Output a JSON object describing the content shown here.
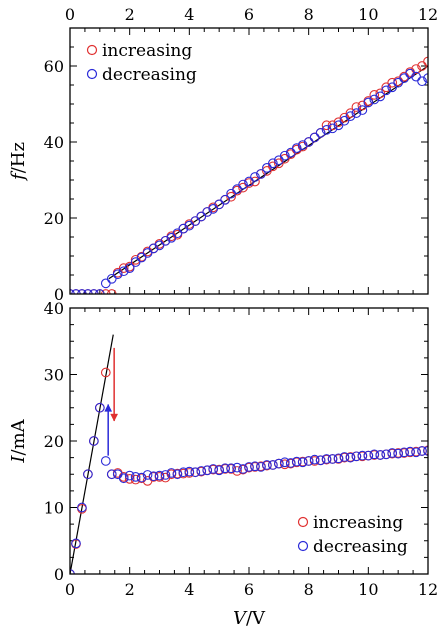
{
  "chart_data": [
    {
      "type": "scatter",
      "title": "",
      "xlabel": "",
      "ylabel": "f/Hz",
      "xlim": [
        0,
        12
      ],
      "ylim": [
        0,
        70
      ],
      "xticks": [
        0,
        2,
        4,
        6,
        8,
        10,
        12
      ],
      "yticks": [
        0,
        20,
        40,
        60
      ],
      "x_ticks_on": "top",
      "legend_position": "top-left",
      "colors": {
        "increasing": "#e03030",
        "decreasing": "#2a2ad8",
        "fit": "#000000"
      },
      "series": [
        {
          "name": "increasing",
          "color": "#e03030",
          "x": [
            0,
            0.2,
            0.4,
            0.6,
            0.8,
            1.0,
            1.2,
            1.4,
            1.6,
            1.8,
            2.0,
            2.2,
            2.4,
            2.6,
            2.8,
            3.0,
            3.2,
            3.4,
            3.6,
            3.8,
            4.0,
            4.2,
            4.4,
            4.6,
            4.8,
            5.0,
            5.2,
            5.4,
            5.6,
            5.8,
            6.0,
            6.2,
            6.4,
            6.6,
            6.8,
            7.0,
            7.2,
            7.4,
            7.6,
            7.8,
            8.0,
            8.2,
            8.4,
            8.6,
            8.8,
            9.0,
            9.2,
            9.4,
            9.6,
            9.8,
            10.0,
            10.2,
            10.4,
            10.6,
            10.8,
            11.0,
            11.2,
            11.4,
            11.6,
            11.8,
            12.0
          ],
          "y": [
            0,
            0,
            0,
            0,
            0,
            0,
            0,
            0,
            5.6,
            6.8,
            7.2,
            9.0,
            9.8,
            11.2,
            12.0,
            13.2,
            14.0,
            15.2,
            15.6,
            17.2,
            18.4,
            19.2,
            20.4,
            21.6,
            22.8,
            23.6,
            24.8,
            25.6,
            27.2,
            28.0,
            29.2,
            29.6,
            31.6,
            32.4,
            33.6,
            34.4,
            35.6,
            36.8,
            38.0,
            38.8,
            40.0,
            41.2,
            42.4,
            44.4,
            44.4,
            45.2,
            46.4,
            47.6,
            49.2,
            49.6,
            50.8,
            52.4,
            52.8,
            54.4,
            55.6,
            56.0,
            57.2,
            58.4,
            59.2,
            60.0,
            61.2
          ]
        },
        {
          "name": "decreasing",
          "color": "#2a2ad8",
          "x": [
            0,
            0.2,
            0.4,
            0.6,
            0.8,
            1.0,
            1.2,
            1.4,
            1.6,
            1.8,
            2.0,
            2.2,
            2.4,
            2.6,
            2.8,
            3.0,
            3.2,
            3.4,
            3.6,
            3.8,
            4.0,
            4.2,
            4.4,
            4.6,
            4.8,
            5.0,
            5.2,
            5.4,
            5.6,
            5.8,
            6.0,
            6.2,
            6.4,
            6.6,
            6.8,
            7.0,
            7.2,
            7.4,
            7.6,
            7.8,
            8.0,
            8.2,
            8.4,
            8.6,
            8.8,
            9.0,
            9.2,
            9.4,
            9.6,
            9.8,
            10.0,
            10.2,
            10.4,
            10.6,
            10.8,
            11.0,
            11.2,
            11.4,
            11.6,
            11.8,
            12.0
          ],
          "y": [
            0,
            0,
            0,
            0,
            0,
            0,
            2.8,
            4.0,
            5.2,
            6.0,
            6.8,
            8.4,
            9.6,
            10.8,
            12.0,
            12.8,
            14.0,
            14.8,
            16.0,
            17.2,
            18.0,
            19.2,
            20.4,
            21.6,
            22.4,
            23.6,
            24.8,
            26.4,
            27.6,
            28.8,
            29.6,
            30.8,
            31.6,
            33.2,
            34.4,
            35.2,
            36.4,
            37.2,
            38.4,
            39.2,
            40.0,
            41.2,
            42.4,
            43.2,
            43.6,
            44.4,
            45.6,
            46.8,
            47.6,
            48.4,
            50.4,
            51.2,
            52.0,
            53.6,
            54.4,
            55.6,
            56.8,
            58.0,
            57.2,
            56.0,
            56.8
          ]
        },
        {
          "name": "",
          "type": "line",
          "color": "#000000",
          "x": [
            1.3,
            12.0
          ],
          "y": [
            4.0,
            60.0
          ]
        }
      ]
    },
    {
      "type": "scatter",
      "title": "",
      "xlabel": "V/V",
      "ylabel": "I/mA",
      "xlim": [
        0,
        12
      ],
      "ylim": [
        0,
        40
      ],
      "xticks": [
        0,
        2,
        4,
        6,
        8,
        10,
        12
      ],
      "yticks": [
        0,
        10,
        20,
        30,
        40
      ],
      "legend_position": "bottom-right",
      "colors": {
        "increasing": "#e03030",
        "decreasing": "#2a2ad8",
        "fit": "#000000"
      },
      "series": [
        {
          "name": "increasing",
          "color": "#e03030",
          "x": [
            0,
            0.2,
            0.4,
            0.6,
            0.8,
            1.0,
            1.2,
            1.4,
            1.6,
            1.8,
            2.0,
            2.2,
            2.4,
            2.6,
            2.8,
            3.0,
            3.2,
            3.4,
            3.6,
            3.8,
            4.0,
            4.2,
            4.4,
            4.6,
            4.8,
            5.0,
            5.2,
            5.4,
            5.6,
            5.8,
            6.0,
            6.2,
            6.4,
            6.6,
            6.8,
            7.0,
            7.2,
            7.4,
            7.6,
            7.8,
            8.0,
            8.2,
            8.4,
            8.6,
            8.8,
            9.0,
            9.2,
            9.4,
            9.6,
            9.8,
            10.0,
            10.2,
            10.4,
            10.6,
            10.8,
            11.0,
            11.2,
            11.4,
            11.6,
            11.8,
            12.0
          ],
          "y": [
            0,
            4.5,
            9.8,
            15.0,
            20.0,
            25.0,
            30.3,
            15.0,
            15.2,
            14.6,
            14.3,
            14.2,
            14.4,
            14.0,
            14.6,
            14.6,
            14.5,
            15.0,
            15.1,
            15.1,
            15.2,
            15.3,
            15.4,
            15.6,
            15.7,
            15.7,
            15.8,
            15.8,
            15.5,
            15.7,
            16.0,
            16.1,
            16.2,
            16.3,
            16.4,
            16.6,
            16.5,
            16.6,
            16.8,
            16.9,
            17.0,
            17.0,
            17.1,
            17.2,
            17.3,
            17.3,
            17.5,
            17.6,
            17.7,
            17.7,
            17.8,
            17.9,
            17.9,
            18.0,
            18.1,
            18.2,
            18.2,
            18.3,
            18.4,
            18.5,
            18.6
          ]
        },
        {
          "name": "decreasing",
          "color": "#2a2ad8",
          "x": [
            0,
            0.2,
            0.4,
            0.6,
            0.8,
            1.0,
            1.2,
            1.4,
            1.6,
            1.8,
            2.0,
            2.2,
            2.4,
            2.6,
            2.8,
            3.0,
            3.2,
            3.4,
            3.6,
            3.8,
            4.0,
            4.2,
            4.4,
            4.6,
            4.8,
            5.0,
            5.2,
            5.4,
            5.6,
            5.8,
            6.0,
            6.2,
            6.4,
            6.6,
            6.8,
            7.0,
            7.2,
            7.4,
            7.6,
            7.8,
            8.0,
            8.2,
            8.4,
            8.6,
            8.8,
            9.0,
            9.2,
            9.4,
            9.6,
            9.8,
            10.0,
            10.2,
            10.4,
            10.6,
            10.8,
            11.0,
            11.2,
            11.4,
            11.6,
            11.8,
            12.0
          ],
          "y": [
            0,
            4.6,
            10.0,
            15.0,
            20.0,
            25.0,
            17.0,
            15.0,
            15.0,
            14.4,
            14.8,
            14.6,
            14.5,
            14.9,
            14.7,
            14.8,
            14.9,
            15.2,
            15.0,
            15.3,
            15.4,
            15.3,
            15.5,
            15.6,
            15.8,
            15.6,
            15.9,
            15.9,
            16.0,
            15.8,
            16.1,
            16.2,
            16.1,
            16.4,
            16.4,
            16.6,
            16.8,
            16.7,
            16.9,
            16.8,
            17.0,
            17.2,
            17.1,
            17.3,
            17.3,
            17.4,
            17.6,
            17.5,
            17.7,
            17.8,
            17.8,
            18.0,
            17.9,
            18.0,
            18.2,
            18.1,
            18.3,
            18.4,
            18.3,
            18.5,
            18.5
          ]
        },
        {
          "name": "",
          "type": "line",
          "color": "#000000",
          "x": [
            0,
            1.45
          ],
          "y": [
            0,
            36.0
          ]
        }
      ],
      "annotations": [
        {
          "type": "arrow",
          "color": "#e03030",
          "x": 1.48,
          "y_from": 34.0,
          "y_to": 23.0
        },
        {
          "type": "arrow",
          "color": "#2a2ad8",
          "x": 1.28,
          "y_from": 17.8,
          "y_to": 25.5
        }
      ]
    }
  ]
}
